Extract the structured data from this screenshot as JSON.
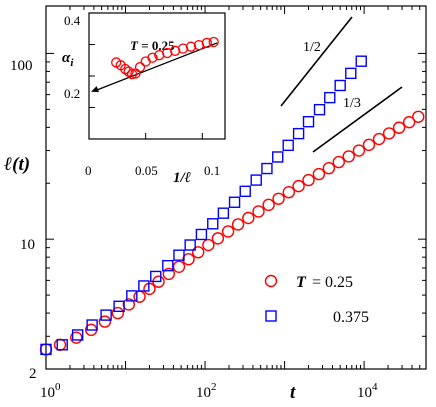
{
  "chart_data": [
    {
      "type": "scatter",
      "title": "",
      "xlabel": "t",
      "ylabel": "ℓ(t)",
      "xscale": "log",
      "yscale": "log",
      "xlim": [
        1,
        60000
      ],
      "ylim": [
        2,
        180
      ],
      "x_ticks": [
        "10^0",
        "10^2",
        "10^4"
      ],
      "y_ticks": [
        "2",
        "10",
        "100"
      ],
      "series": [
        {
          "name": "T = 0.25",
          "legend_label": "T",
          "legend_value": "= 0.25",
          "marker": "circle",
          "color": "#ff0000",
          "x": [
            1,
            1.5,
            2.4,
            3.7,
            5.5,
            8,
            11,
            15,
            20,
            26,
            35,
            47,
            62,
            82,
            110,
            145,
            195,
            260,
            350,
            470,
            630,
            840,
            1130,
            1500,
            2000,
            2700,
            3600,
            4800,
            6400,
            8600,
            11500,
            15400,
            20600,
            27500,
            36800,
            48000
          ],
          "y": [
            2.55,
            2.7,
            2.95,
            3.25,
            3.6,
            4.0,
            4.45,
            4.9,
            5.4,
            5.9,
            6.5,
            7.1,
            7.8,
            8.5,
            9.3,
            10.1,
            11.0,
            12.0,
            13.0,
            14.1,
            15.3,
            16.5,
            17.9,
            19.3,
            20.8,
            22.4,
            24.1,
            26.0,
            27.9,
            30.0,
            32.2,
            34.6,
            37.1,
            39.8,
            42.6,
            45.6
          ]
        },
        {
          "name": "0.375",
          "legend_label": "0.375",
          "marker": "square",
          "color": "#0000ff",
          "x": [
            1,
            1.6,
            2.5,
            3.8,
            5.7,
            8.3,
            12,
            17,
            24,
            34,
            47,
            65,
            90,
            125,
            170,
            235,
            320,
            440,
            600,
            820,
            1110,
            1500,
            2000,
            2750,
            3700,
            5000,
            6800,
            9200
          ],
          "y": [
            2.55,
            2.7,
            3.05,
            3.45,
            3.9,
            4.35,
            4.95,
            5.6,
            6.3,
            7.2,
            8.2,
            9.3,
            10.6,
            12.1,
            13.8,
            15.8,
            18.1,
            20.8,
            24.0,
            27.7,
            32.0,
            37.0,
            42.9,
            49.8,
            57.8,
            67.2,
            78.1,
            90.8
          ]
        }
      ],
      "annotations": [
        "1/2",
        "1/3"
      ]
    },
    {
      "type": "scatter",
      "title": "",
      "annotation": "T = 0.25",
      "xlabel": "1/ℓ",
      "ylabel": "α_i",
      "xlim": [
        0,
        0.12
      ],
      "ylim": [
        0,
        0.4
      ],
      "x_ticks": [
        "0",
        "0.05",
        "0.1"
      ],
      "y_ticks": [
        "0.2",
        "0.4"
      ],
      "series": [
        {
          "name": "T = 0.25",
          "marker": "circle",
          "color": "#ff0000",
          "x": [
            0.024,
            0.028,
            0.032,
            0.035,
            0.038,
            0.041,
            0.045,
            0.05,
            0.056,
            0.062,
            0.069,
            0.076,
            0.083,
            0.09,
            0.097,
            0.104,
            0.11
          ],
          "y": [
            0.243,
            0.234,
            0.222,
            0.214,
            0.206,
            0.208,
            0.228,
            0.246,
            0.258,
            0.266,
            0.273,
            0.28,
            0.287,
            0.293,
            0.298,
            0.305,
            0.308
          ]
        }
      ],
      "fit_line": {
        "x": [
          0.0,
          0.113
        ],
        "y": [
          0.15,
          0.305
        ]
      }
    }
  ],
  "labels": {
    "main_xlabel": "t",
    "main_ylabel": "ℓ(t)",
    "inset_ylabel": "α",
    "inset_ylabel_sub": "i",
    "inset_xlabel": "1/ℓ",
    "inset_annotation": "T = 0.25",
    "slope_half": "1/2",
    "slope_third": "1/3",
    "legend_T": "T",
    "legend_T_value": "= 0.25",
    "legend_second": "0.375"
  },
  "colors": {
    "red_series": "#ff0000",
    "blue_series": "#0000ff",
    "axes": "#000000"
  }
}
